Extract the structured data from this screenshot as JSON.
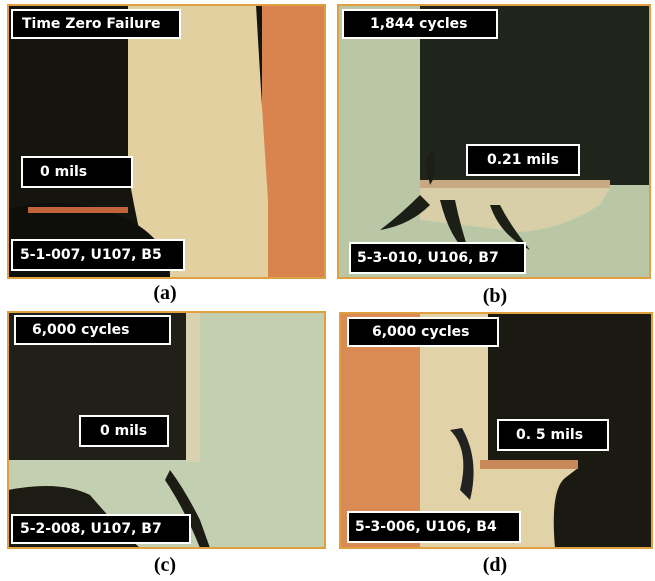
{
  "panels": [
    {
      "top_label": "Time Zero Failure",
      "mid_label": "0 mils",
      "bottom_label": "5-1-007, U107, B5",
      "caption": "(a)"
    },
    {
      "top_label": "1,844 cycles",
      "mid_label": "0.21 mils",
      "bottom_label": "5-3-010, U106, B7",
      "caption": "(b)"
    },
    {
      "top_label": "6,000 cycles",
      "mid_label": "0 mils",
      "bottom_label": "5-2-008, U107, B7",
      "caption": "(c)"
    },
    {
      "top_label": "6,000 cycles",
      "mid_label": "0. 5 mils",
      "bottom_label": "5-3-006, U106, B4",
      "caption": "(d)"
    }
  ]
}
